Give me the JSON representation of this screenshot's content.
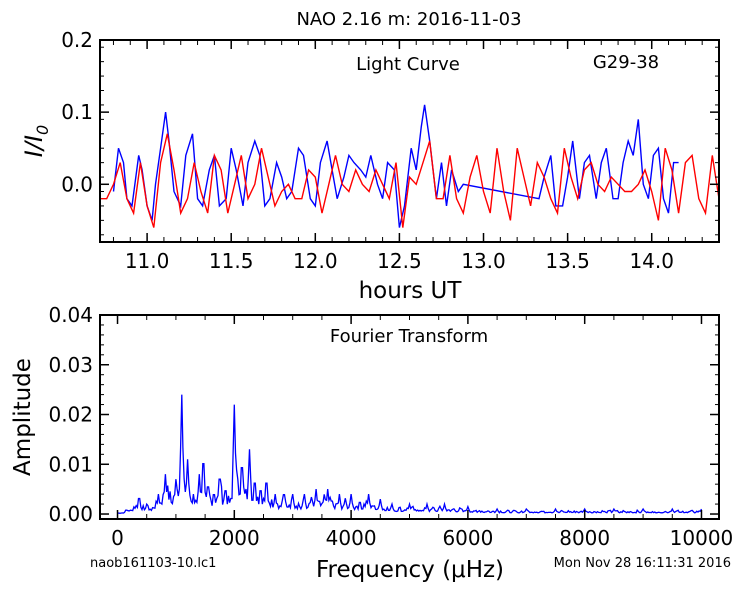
{
  "header": {
    "title": "NAO 2.16 m:  2016-11-03",
    "file_label": "naob161103-10.lc1",
    "timestamp": "Mon Nov 28 16:11:31 2016"
  },
  "chart_data": [
    {
      "type": "line",
      "title": "Light Curve",
      "object": "G29-38",
      "xlabel": "hours UT",
      "ylabel": "I/I0",
      "xlim": [
        10.72,
        14.4
      ],
      "ylim": [
        -0.08,
        0.2
      ],
      "x_ticks": [
        "11.0",
        "11.5",
        "12.0",
        "12.5",
        "13.0",
        "13.5",
        "14.0"
      ],
      "y_ticks": [
        "0.0",
        "0.1",
        "0.2"
      ],
      "colors": {
        "data": "#0000ff",
        "model": "#ff0000"
      },
      "series": [
        {
          "color": "#0000ff",
          "x": [
            10.8,
            10.83,
            10.86,
            10.88,
            10.91,
            10.95,
            10.97,
            11.0,
            11.03,
            11.05,
            11.08,
            11.11,
            11.13,
            11.16,
            11.2,
            11.23,
            11.27,
            11.3,
            11.33,
            11.37,
            11.4,
            11.43,
            11.47,
            11.5,
            11.53,
            11.57,
            11.6,
            11.64,
            11.67,
            11.7,
            11.73,
            11.77,
            11.8,
            11.83,
            11.86,
            11.9,
            11.93,
            11.97,
            12.0,
            12.03,
            12.07,
            12.1,
            12.13,
            12.17,
            12.2,
            12.23,
            12.27,
            12.3,
            12.33,
            12.37,
            12.4,
            12.43,
            12.47,
            12.5,
            12.53,
            12.57,
            12.6,
            12.63,
            12.65,
            12.68,
            12.72,
            12.75,
            12.78,
            12.81,
            12.85,
            12.88,
            13.33,
            13.36,
            13.4,
            13.43,
            13.47,
            13.5,
            13.53,
            13.57,
            13.6,
            13.63,
            13.67,
            13.7,
            13.73,
            13.77,
            13.8,
            13.83,
            13.86,
            13.89,
            13.92,
            13.95,
            13.98,
            14.01,
            14.04,
            14.07,
            14.1,
            14.13,
            14.16
          ],
          "y": [
            -0.01,
            0.05,
            0.03,
            -0.02,
            -0.03,
            0.04,
            0.02,
            -0.03,
            -0.05,
            0.0,
            0.05,
            0.1,
            0.06,
            -0.01,
            -0.03,
            0.04,
            0.07,
            -0.02,
            -0.03,
            0.02,
            0.04,
            -0.03,
            -0.02,
            0.05,
            0.02,
            -0.03,
            0.03,
            0.06,
            0.04,
            -0.03,
            -0.02,
            0.03,
            0.01,
            -0.02,
            -0.01,
            0.05,
            0.04,
            -0.02,
            -0.03,
            0.03,
            0.06,
            0.02,
            -0.02,
            0.01,
            0.04,
            0.03,
            0.02,
            0.01,
            0.04,
            0.0,
            -0.02,
            0.03,
            0.02,
            -0.06,
            -0.03,
            0.05,
            0.02,
            0.08,
            0.11,
            0.06,
            -0.02,
            0.03,
            -0.03,
            0.02,
            -0.01,
            0.0,
            -0.02,
            0.01,
            0.04,
            -0.03,
            -0.03,
            0.01,
            0.06,
            -0.02,
            0.03,
            0.04,
            -0.02,
            0.03,
            0.05,
            -0.02,
            -0.02,
            0.03,
            0.06,
            0.04,
            0.09,
            0.0,
            -0.02,
            0.04,
            0.05,
            -0.02,
            -0.04,
            0.03,
            0.03
          ]
        },
        {
          "color": "#ff0000",
          "x": [
            10.72,
            10.76,
            10.8,
            10.84,
            10.88,
            10.92,
            10.96,
            11.0,
            11.04,
            11.08,
            11.12,
            11.16,
            11.2,
            11.24,
            11.28,
            11.32,
            11.36,
            11.4,
            11.44,
            11.48,
            11.52,
            11.56,
            11.6,
            11.64,
            11.68,
            11.72,
            11.76,
            11.8,
            11.84,
            11.88,
            11.92,
            11.96,
            12.0,
            12.04,
            12.08,
            12.12,
            12.16,
            12.2,
            12.24,
            12.28,
            12.32,
            12.36,
            12.4,
            12.44,
            12.48,
            12.52,
            12.56,
            12.6,
            12.64,
            12.68,
            12.72,
            12.76,
            12.8,
            12.84,
            12.88,
            12.92,
            12.96,
            13.0,
            13.04,
            13.08,
            13.12,
            13.16,
            13.2,
            13.24,
            13.28,
            13.32,
            13.36,
            13.4,
            13.44,
            13.48,
            13.52,
            13.56,
            13.6,
            13.64,
            13.68,
            13.72,
            13.76,
            13.8,
            13.84,
            13.88,
            13.92,
            13.96,
            14.0,
            14.04,
            14.08,
            14.12,
            14.16,
            14.2,
            14.24,
            14.28,
            14.32,
            14.36,
            14.4
          ],
          "y": [
            -0.02,
            -0.02,
            0.0,
            0.03,
            -0.02,
            -0.04,
            0.03,
            -0.03,
            -0.06,
            0.03,
            0.07,
            0.02,
            -0.04,
            -0.02,
            0.03,
            -0.01,
            -0.04,
            0.04,
            0.02,
            -0.04,
            0.0,
            0.04,
            -0.02,
            0.0,
            0.05,
            0.01,
            -0.03,
            -0.01,
            0.0,
            -0.02,
            -0.02,
            0.02,
            0.01,
            -0.04,
            0.0,
            0.04,
            0.0,
            -0.01,
            0.02,
            0.0,
            -0.01,
            0.02,
            0.0,
            -0.02,
            0.03,
            -0.06,
            0.01,
            0.0,
            0.03,
            0.06,
            -0.02,
            -0.02,
            0.04,
            -0.02,
            -0.04,
            0.01,
            0.04,
            -0.01,
            -0.04,
            0.05,
            -0.01,
            -0.05,
            0.05,
            0.01,
            -0.03,
            0.03,
            0.01,
            -0.02,
            -0.04,
            0.05,
            0.01,
            -0.02,
            0.02,
            0.03,
            0.0,
            -0.01,
            0.01,
            0.0,
            -0.01,
            -0.01,
            0.0,
            0.02,
            -0.01,
            -0.05,
            0.05,
            0.02,
            -0.04,
            0.03,
            0.04,
            -0.02,
            -0.04,
            0.04,
            -0.02
          ]
        }
      ]
    },
    {
      "type": "line",
      "title": "Fourier Transform",
      "xlabel": "Frequency (μHz)",
      "ylabel": "Amplitude",
      "xlim": [
        -300,
        10300
      ],
      "ylim": [
        -0.001,
        0.04
      ],
      "x_ticks": [
        "0",
        "2000",
        "4000",
        "6000",
        "8000",
        "10000"
      ],
      "y_ticks": [
        "0.00",
        "0.01",
        "0.02",
        "0.03",
        "0.04"
      ],
      "color": "#0000ff",
      "peaks": {
        "x": [
          150,
          370,
          500,
          700,
          820,
          1000,
          1100,
          1200,
          1300,
          1400,
          1470,
          1550,
          1650,
          1750,
          1850,
          1950,
          2000,
          2060,
          2130,
          2200,
          2260,
          2350,
          2450,
          2550,
          2700,
          2850,
          3000,
          3200,
          3400,
          3600,
          3800,
          4000,
          4150,
          4300,
          4500,
          4700,
          5000,
          5300,
          5600,
          6000,
          6500,
          7000,
          7500,
          8000,
          8500,
          9000,
          9500,
          10000
        ],
        "y": [
          0.001,
          0.004,
          0.002,
          0.004,
          0.008,
          0.007,
          0.024,
          0.011,
          0.004,
          0.008,
          0.013,
          0.007,
          0.005,
          0.009,
          0.006,
          0.004,
          0.022,
          0.007,
          0.012,
          0.005,
          0.013,
          0.008,
          0.006,
          0.008,
          0.004,
          0.005,
          0.004,
          0.004,
          0.005,
          0.005,
          0.004,
          0.004,
          0.003,
          0.004,
          0.003,
          0.002,
          0.002,
          0.002,
          0.002,
          0.0015,
          0.001,
          0.001,
          0.001,
          0.001,
          0.001,
          0.001,
          0.001,
          0.001
        ]
      }
    }
  ]
}
